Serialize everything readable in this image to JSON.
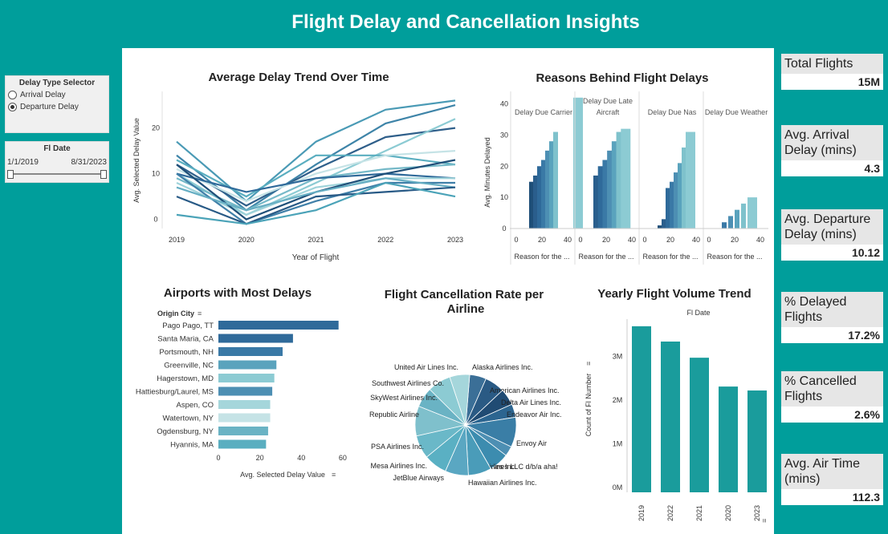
{
  "page_title": "Flight Delay and Cancellation Insights",
  "controls": {
    "delay_type": {
      "title": "Delay Type Selector",
      "options": [
        "Arrival Delay",
        "Departure Delay"
      ],
      "selected": "Departure Delay"
    },
    "date_filter": {
      "title": "Fl Date",
      "start": "1/1/2019",
      "end": "8/31/2023"
    }
  },
  "kpis": [
    {
      "label": "Total Flights",
      "value": "15M"
    },
    {
      "label": "Avg. Arrival Delay (mins)",
      "value": "4.3"
    },
    {
      "label": "Avg. Departure Delay (mins)",
      "value": "10.12"
    },
    {
      "label": "% Delayed Flights",
      "value": "17.2%"
    },
    {
      "label": "% Cancelled Flights",
      "value": "2.6%"
    },
    {
      "label": "Avg. Air Time (mins)",
      "value": "112.3"
    }
  ],
  "colors": {
    "teal": "#009e9b",
    "bar_teal": "#1a9c9c",
    "dark_blue": "#2c5f8a",
    "light_blue": "#7fc2cc"
  },
  "chart_data": [
    {
      "type": "line",
      "title": "Average Delay Trend Over Time",
      "xlabel": "Year of Flight",
      "ylabel": "Avg. Selected Delay Value",
      "x": [
        "2019",
        "2020",
        "2021",
        "2022",
        "2023"
      ],
      "ylim": [
        -2,
        28
      ],
      "yticks": [
        0,
        10,
        20
      ],
      "series": [
        {
          "values": [
            17,
            4,
            17,
            24,
            26
          ],
          "color": "#4a9ab5"
        },
        {
          "values": [
            14,
            2,
            12,
            21,
            25
          ],
          "color": "#3e84a8"
        },
        {
          "values": [
            12,
            3,
            11,
            18,
            20
          ],
          "color": "#2f5f8a"
        },
        {
          "values": [
            10,
            1,
            8,
            15,
            22
          ],
          "color": "#8ccbd3"
        },
        {
          "values": [
            13,
            5,
            14,
            14,
            12
          ],
          "color": "#5aaec0"
        },
        {
          "values": [
            11,
            4,
            10,
            14,
            15
          ],
          "color": "#c5e3e6"
        },
        {
          "values": [
            9,
            2,
            9,
            11,
            12
          ],
          "color": "#75b9c8"
        },
        {
          "values": [
            10,
            6,
            9,
            10,
            9
          ],
          "color": "#2f6a9a"
        },
        {
          "values": [
            8,
            1,
            7,
            9,
            9
          ],
          "color": "#9fd3da"
        },
        {
          "values": [
            12,
            0,
            6,
            10,
            13
          ],
          "color": "#1f4f78"
        },
        {
          "values": [
            10,
            -1,
            4,
            8,
            8
          ],
          "color": "#3f7fa8"
        },
        {
          "values": [
            7,
            2,
            6,
            9,
            7
          ],
          "color": "#66aec3"
        },
        {
          "values": [
            5,
            -1,
            5,
            6,
            7
          ],
          "color": "#285a86"
        },
        {
          "values": [
            1,
            -1,
            2,
            8,
            5
          ],
          "color": "#4ba3b8"
        }
      ]
    },
    {
      "type": "bar",
      "title": "Reasons Behind Flight Delays",
      "ylabel": "Avg. Minutes Delayed",
      "yticks": [
        0,
        10,
        20,
        30,
        40
      ],
      "xticks": [
        0,
        20,
        40
      ],
      "xlabel": "Reason for the ...",
      "panels": [
        {
          "name": "Delay Due Carrier",
          "values": [
            15,
            17,
            20,
            22,
            25,
            28,
            31,
            42
          ]
        },
        {
          "name": "Delay Due Late Aircraft",
          "values": [
            17,
            20,
            22,
            25,
            28,
            31,
            32
          ]
        },
        {
          "name": "Delay Due Nas",
          "values": [
            1,
            3,
            13,
            15,
            18,
            21,
            26,
            31
          ]
        },
        {
          "name": "Delay Due Weather",
          "values": [
            2,
            4,
            6,
            8,
            10
          ]
        }
      ]
    },
    {
      "type": "bar",
      "title": "Airports with Most Delays",
      "category_label": "Origin City",
      "xlabel": "Avg. Selected Delay Value",
      "xticks": [
        0,
        20,
        40,
        60
      ],
      "categories": [
        "Pago Pago, TT",
        "Santa Maria, CA",
        "Portsmouth, NH",
        "Greenville, NC",
        "Hagerstown, MD",
        "Hattiesburg/Laurel, MS",
        "Aspen, CO",
        "Watertown, NY",
        "Ogdensburg, NY",
        "Hyannis, MA"
      ],
      "values": [
        58,
        36,
        31,
        28,
        27,
        26,
        25,
        25,
        24,
        23
      ]
    },
    {
      "type": "pie",
      "title": "Flight Cancellation Rate per Airline",
      "labels": [
        "Alaska Airlines Inc.",
        "American Airlines Inc.",
        "Delta Air Lines Inc.",
        "Endeavor Air Inc.",
        "Envoy Air",
        "Frontier Airlines Inc.",
        "ExpressJet Airlines LLC d/b/a aha!",
        "Hawaiian Airlines Inc.",
        "JetBlue Airways",
        "Mesa Airlines Inc.",
        "PSA Airlines Inc.",
        "Republic Airline",
        "SkyWest Airlines Inc.",
        "Southwest Airlines Co.",
        "United Air Lines Inc."
      ],
      "values": [
        5,
        6,
        5,
        4,
        9,
        3,
        6,
        7,
        7,
        7,
        7,
        9,
        6,
        7,
        6
      ]
    },
    {
      "type": "bar",
      "title": "Yearly Flight Volume Trend",
      "subtitle": "Fl Date",
      "ylabel": "Count of Fl Number",
      "yticks": [
        "0M",
        "1M",
        "2M",
        "3M"
      ],
      "categories": [
        "2019",
        "2022",
        "2021",
        "2020",
        "2023"
      ],
      "values": [
        3.8,
        3.45,
        3.08,
        2.42,
        2.33
      ]
    }
  ]
}
